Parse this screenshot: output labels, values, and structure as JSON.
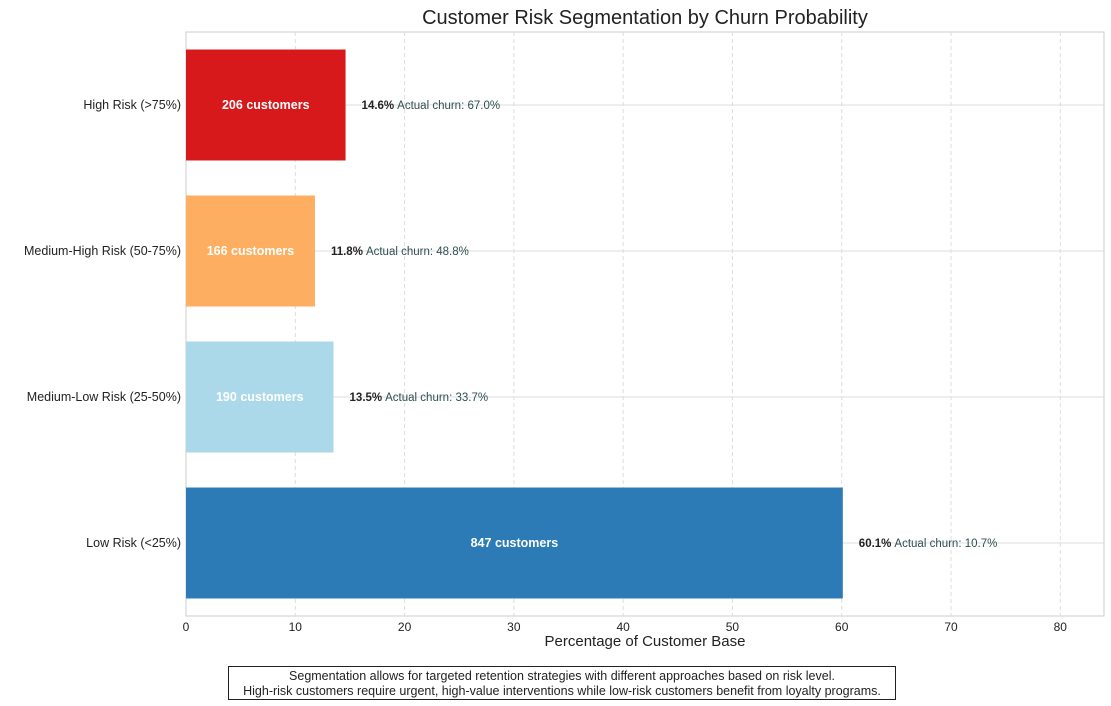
{
  "chart_data": {
    "type": "bar",
    "orientation": "horizontal",
    "title": "Customer Risk Segmentation by Churn Probability",
    "xlabel": "Percentage of Customer Base",
    "ylabel": "",
    "xlim": [
      0,
      84
    ],
    "xticks": [
      "0",
      "10",
      "20",
      "30",
      "40",
      "50",
      "60",
      "70",
      "80"
    ],
    "grid": true,
    "categories": [
      "High Risk (>75%)",
      "Medium-High Risk (50-75%)",
      "Medium-Low Risk (25-50%)",
      "Low Risk (<25%)"
    ],
    "values": [
      14.6,
      11.8,
      13.5,
      60.1
    ],
    "bar_labels": [
      "206 customers",
      "166 customers",
      "190 customers",
      "847 customers"
    ],
    "value_labels": [
      "14.6%",
      "11.8%",
      "13.5%",
      "60.1%"
    ],
    "churn_labels": [
      "Actual churn: 67.0%",
      "Actual churn: 48.8%",
      "Actual churn: 33.7%",
      "Actual churn: 10.7%"
    ],
    "colors": [
      "#d7191c",
      "#fdae61",
      "#abd9e9",
      "#2c7bb6"
    ]
  },
  "caption": {
    "line1": "Segmentation allows for targeted retention strategies with different approaches based on risk level.",
    "line2": "High-risk customers require urgent, high-value interventions while low-risk customers benefit from loyalty programs."
  }
}
